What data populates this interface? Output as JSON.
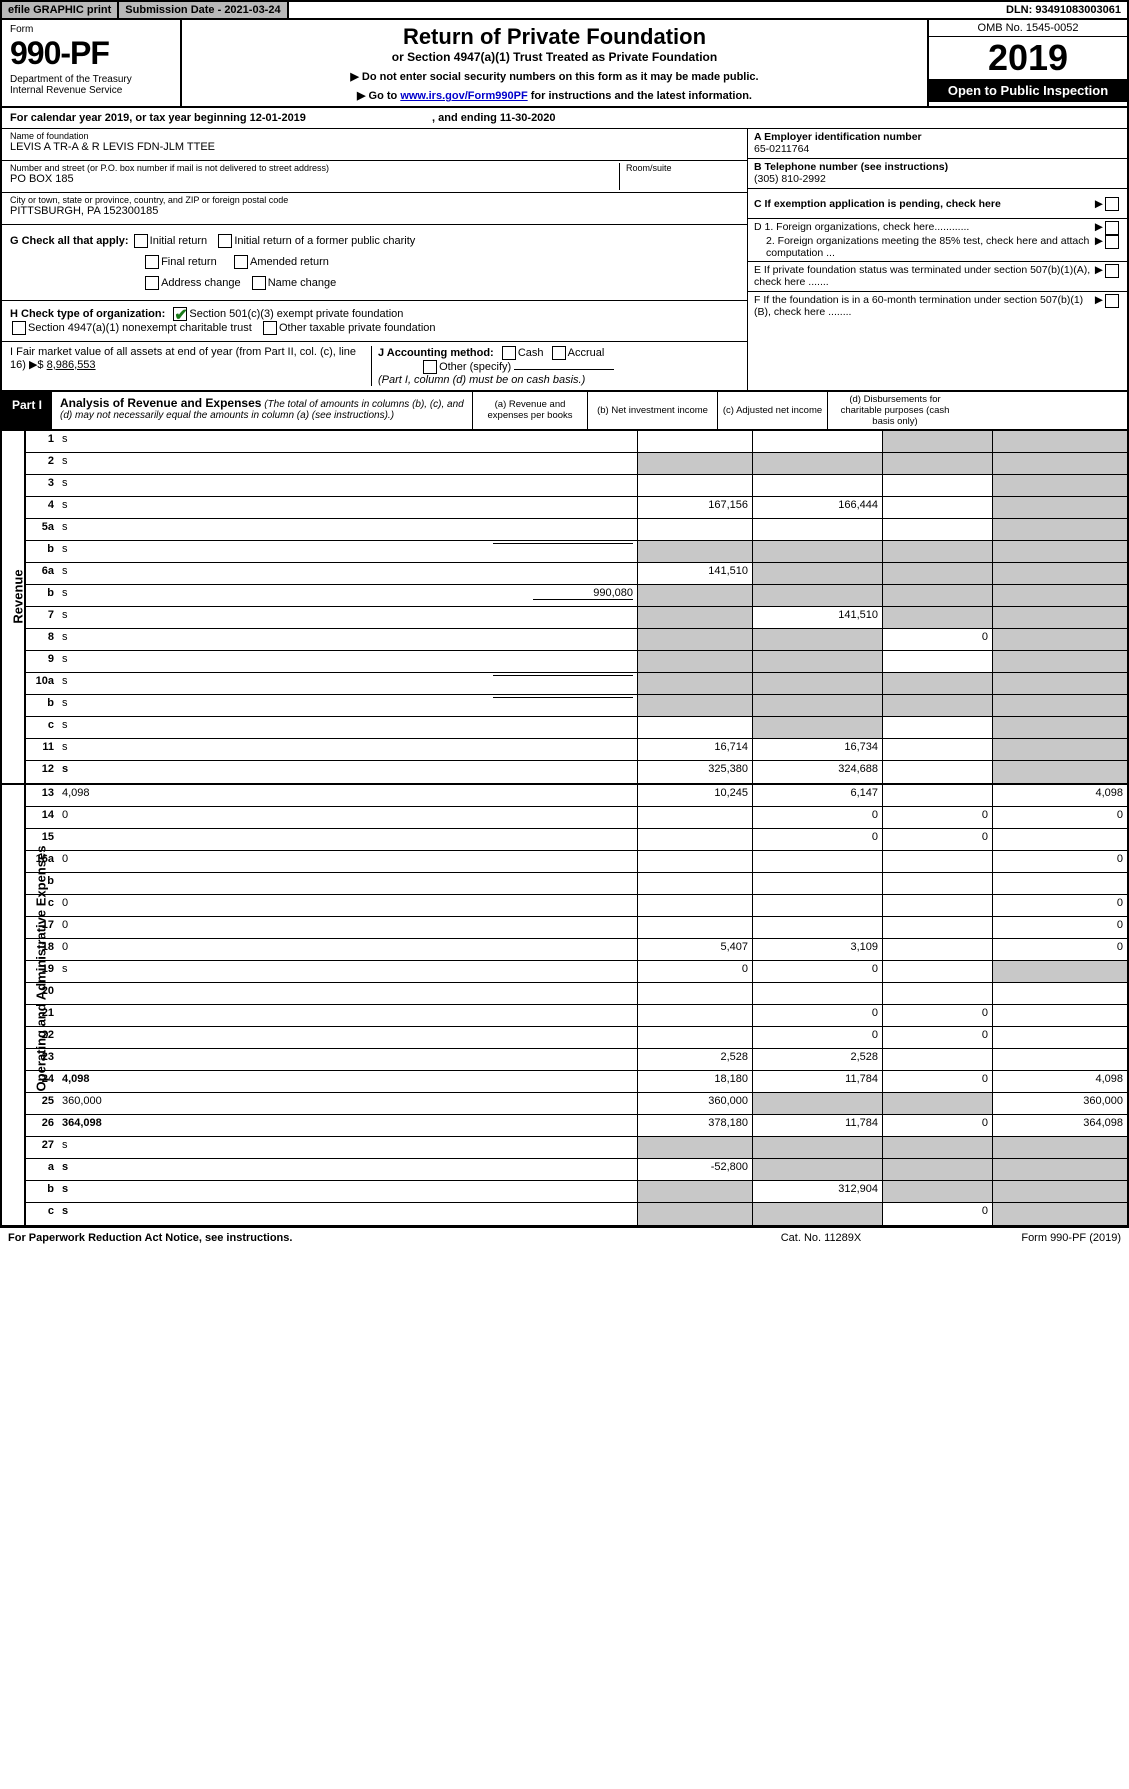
{
  "topbar": {
    "efile": "efile GRAPHIC print",
    "subdate_label": "Submission Date - 2021-03-24",
    "dln": "DLN: 93491083003061"
  },
  "header": {
    "form_label": "Form",
    "form_num": "990-PF",
    "dept": "Department of the Treasury\nInternal Revenue Service",
    "title": "Return of Private Foundation",
    "subtitle": "or Section 4947(a)(1) Trust Treated as Private Foundation",
    "instr1": "▶ Do not enter social security numbers on this form as it may be made public.",
    "instr2_pre": "▶ Go to ",
    "instr2_link": "www.irs.gov/Form990PF",
    "instr2_post": " for instructions and the latest information.",
    "omb": "OMB No. 1545-0052",
    "year": "2019",
    "openpub": "Open to Public Inspection"
  },
  "calyear": {
    "pre": "For calendar year 2019, or tax year beginning 12-01-2019",
    "mid": ", and ending 11-30-2020"
  },
  "entity": {
    "name_lbl": "Name of foundation",
    "name": "LEVIS A TR-A & R LEVIS FDN-JLM TTEE",
    "addr_lbl": "Number and street (or P.O. box number if mail is not delivered to street address)",
    "addr": "PO BOX 185",
    "room_lbl": "Room/suite",
    "city_lbl": "City or town, state or province, country, and ZIP or foreign postal code",
    "city": "PITTSBURGH, PA  152300185"
  },
  "side": {
    "a_lbl": "A Employer identification number",
    "a_val": "65-0211764",
    "b_lbl": "B Telephone number (see instructions)",
    "b_val": "(305) 810-2992",
    "c_lbl": "C If exemption application is pending, check here",
    "d1": "D 1. Foreign organizations, check here............",
    "d2": "2. Foreign organizations meeting the 85% test, check here and attach computation ...",
    "e": "E  If private foundation status was terminated under section 507(b)(1)(A), check here .......",
    "f": "F  If the foundation is in a 60-month termination under section 507(b)(1)(B), check here ........"
  },
  "checks": {
    "g_lbl": "G Check all that apply:",
    "g_opts": [
      "Initial return",
      "Initial return of a former public charity",
      "Final return",
      "Amended return",
      "Address change",
      "Name change"
    ],
    "h_lbl": "H Check type of organization:",
    "h_opts": [
      "Section 501(c)(3) exempt private foundation",
      "Section 4947(a)(1) nonexempt charitable trust",
      "Other taxable private foundation"
    ],
    "h_checked": 0,
    "i_lbl": "I Fair market value of all assets at end of year (from Part II, col. (c), line 16) ▶$",
    "i_val": "8,986,553",
    "j_lbl": "J Accounting method:",
    "j_opts": [
      "Cash",
      "Accrual",
      "Other (specify)"
    ],
    "j_note": "(Part I, column (d) must be on cash basis.)"
  },
  "part1": {
    "tag": "Part I",
    "title": "Analysis of Revenue and Expenses",
    "sub": "(The total of amounts in columns (b), (c), and (d) may not necessarily equal the amounts in column (a) (see instructions).)",
    "cols": {
      "a": "(a)   Revenue and expenses per books",
      "b": "(b)   Net investment income",
      "c": "(c)   Adjusted net income",
      "d": "(d)   Disbursements for charitable purposes (cash basis only)"
    }
  },
  "side_rev": "Revenue",
  "side_exp": "Operating and Administrative Expenses",
  "rows_rev": [
    {
      "n": "1",
      "d": "s",
      "a": "",
      "b": "",
      "c": "s"
    },
    {
      "n": "2",
      "d": "s",
      "a": "s",
      "b": "s",
      "c": "s",
      "nb": true
    },
    {
      "n": "3",
      "d": "s",
      "a": "",
      "b": "",
      "c": ""
    },
    {
      "n": "4",
      "d": "s",
      "a": "167,156",
      "b": "166,444",
      "c": ""
    },
    {
      "n": "5a",
      "d": "s",
      "a": "",
      "b": "",
      "c": ""
    },
    {
      "n": "b",
      "d": "s",
      "a": "s",
      "b": "s",
      "c": "s",
      "inline": true
    },
    {
      "n": "6a",
      "d": "s",
      "a": "141,510",
      "b": "s",
      "c": "s"
    },
    {
      "n": "b",
      "d": "s",
      "inline_val": "990,080",
      "a": "s",
      "b": "s",
      "c": "s"
    },
    {
      "n": "7",
      "d": "s",
      "a": "s",
      "b": "141,510",
      "c": "s"
    },
    {
      "n": "8",
      "d": "s",
      "a": "s",
      "b": "s",
      "c": "0"
    },
    {
      "n": "9",
      "d": "s",
      "a": "s",
      "b": "s",
      "c": ""
    },
    {
      "n": "10a",
      "d": "s",
      "inline": true,
      "a": "s",
      "b": "s",
      "c": "s"
    },
    {
      "n": "b",
      "d": "s",
      "inline": true,
      "a": "s",
      "b": "s",
      "c": "s"
    },
    {
      "n": "c",
      "d": "s",
      "a": "",
      "b": "s",
      "c": ""
    },
    {
      "n": "11",
      "d": "s",
      "a": "16,714",
      "b": "16,734",
      "c": ""
    },
    {
      "n": "12",
      "d": "s",
      "bold": true,
      "a": "325,380",
      "b": "324,688",
      "c": ""
    }
  ],
  "rows_exp": [
    {
      "n": "13",
      "d": "4,098",
      "a": "10,245",
      "b": "6,147",
      "c": ""
    },
    {
      "n": "14",
      "d": "0",
      "a": "",
      "b": "0",
      "c": "0"
    },
    {
      "n": "15",
      "d": "",
      "a": "",
      "b": "0",
      "c": "0"
    },
    {
      "n": "16a",
      "d": "0",
      "a": "",
      "b": "",
      "c": ""
    },
    {
      "n": "b",
      "d": "",
      "a": "",
      "b": "",
      "c": ""
    },
    {
      "n": "c",
      "d": "0",
      "a": "",
      "b": "",
      "c": ""
    },
    {
      "n": "17",
      "d": "0",
      "a": "",
      "b": "",
      "c": ""
    },
    {
      "n": "18",
      "d": "0",
      "a": "5,407",
      "b": "3,109",
      "c": ""
    },
    {
      "n": "19",
      "d": "s",
      "a": "0",
      "b": "0",
      "c": ""
    },
    {
      "n": "20",
      "d": "",
      "a": "",
      "b": "",
      "c": ""
    },
    {
      "n": "21",
      "d": "",
      "a": "",
      "b": "0",
      "c": "0"
    },
    {
      "n": "22",
      "d": "",
      "a": "",
      "b": "0",
      "c": "0"
    },
    {
      "n": "23",
      "d": "",
      "a": "2,528",
      "b": "2,528",
      "c": ""
    },
    {
      "n": "24",
      "d": "4,098",
      "bold": true,
      "a": "18,180",
      "b": "11,784",
      "c": "0"
    },
    {
      "n": "25",
      "d": "360,000",
      "a": "360,000",
      "b": "s",
      "c": "s"
    },
    {
      "n": "26",
      "d": "364,098",
      "bold": true,
      "a": "378,180",
      "b": "11,784",
      "c": "0"
    },
    {
      "n": "27",
      "d": "s",
      "a": "s",
      "b": "s",
      "c": "s"
    },
    {
      "n": "a",
      "d": "s",
      "bold": true,
      "a": "-52,800",
      "b": "s",
      "c": "s"
    },
    {
      "n": "b",
      "d": "s",
      "bold": true,
      "a": "s",
      "b": "312,904",
      "c": "s"
    },
    {
      "n": "c",
      "d": "s",
      "bold": true,
      "a": "s",
      "b": "s",
      "c": "0"
    }
  ],
  "footer": {
    "l": "For Paperwork Reduction Act Notice, see instructions.",
    "m": "Cat. No. 11289X",
    "r": "Form 990-PF (2019)"
  },
  "colors": {
    "shade": "#c8c8c8",
    "check": "#1a7a1a",
    "link": "#0000cc"
  }
}
